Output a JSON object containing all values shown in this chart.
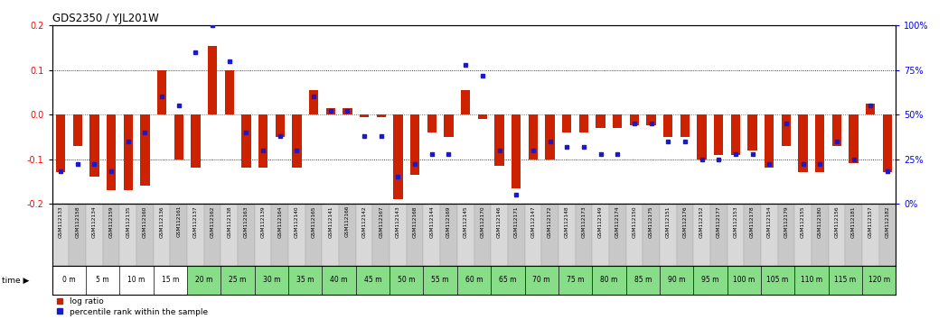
{
  "title": "GDS2350 / YJL201W",
  "gsm_labels": [
    "GSM112133",
    "GSM112158",
    "GSM112134",
    "GSM112159",
    "GSM112135",
    "GSM112160",
    "GSM112136",
    "GSM112161",
    "GSM112137",
    "GSM112162",
    "GSM112138",
    "GSM112163",
    "GSM112139",
    "GSM112164",
    "GSM112140",
    "GSM112165",
    "GSM112141",
    "GSM112166",
    "GSM112142",
    "GSM112167",
    "GSM112143",
    "GSM112168",
    "GSM112144",
    "GSM112169",
    "GSM112145",
    "GSM112170",
    "GSM112146",
    "GSM112171",
    "GSM112147",
    "GSM112172",
    "GSM112148",
    "GSM112173",
    "GSM112149",
    "GSM112174",
    "GSM112150",
    "GSM112175",
    "GSM112151",
    "GSM112176",
    "GSM112152",
    "GSM112177",
    "GSM112153",
    "GSM112178",
    "GSM112154",
    "GSM112179",
    "GSM112155",
    "GSM112180",
    "GSM112156",
    "GSM112181",
    "GSM112157",
    "GSM112182"
  ],
  "time_labels": [
    "0 m",
    "5 m",
    "10 m",
    "15 m",
    "20 m",
    "25 m",
    "30 m",
    "35 m",
    "40 m",
    "45 m",
    "50 m",
    "55 m",
    "60 m",
    "65 m",
    "70 m",
    "75 m",
    "80 m",
    "85 m",
    "90 m",
    "95 m",
    "100 m",
    "105 m",
    "110 m",
    "115 m",
    "120 m"
  ],
  "log_ratio": [
    -0.13,
    -0.07,
    -0.14,
    -0.17,
    -0.17,
    -0.16,
    0.1,
    -0.1,
    -0.12,
    0.155,
    0.1,
    -0.12,
    -0.12,
    -0.05,
    -0.12,
    0.055,
    0.015,
    0.015,
    -0.005,
    -0.005,
    -0.19,
    -0.135,
    -0.04,
    -0.05,
    0.055,
    -0.01,
    -0.115,
    -0.165,
    -0.1,
    -0.1,
    -0.04,
    -0.04,
    -0.03,
    -0.03,
    -0.025,
    -0.025,
    -0.05,
    -0.05,
    -0.1,
    -0.09,
    -0.09,
    -0.08,
    -0.12,
    -0.07,
    -0.13,
    -0.13,
    -0.07,
    -0.11,
    0.025,
    -0.13
  ],
  "percentile_pct": [
    18,
    22,
    22,
    18,
    35,
    40,
    60,
    55,
    85,
    100,
    80,
    40,
    30,
    38,
    30,
    60,
    52,
    52,
    38,
    38,
    15,
    22,
    28,
    28,
    78,
    72,
    30,
    5,
    30,
    35,
    32,
    32,
    28,
    28,
    45,
    45,
    35,
    35,
    25,
    25,
    28,
    28,
    22,
    45,
    22,
    22,
    35,
    25,
    55,
    18
  ],
  "bar_color": "#cc2200",
  "dot_color": "#1a1acc",
  "bg_color": "#ffffff",
  "ylim": [
    -0.2,
    0.2
  ],
  "y2lim": [
    0,
    100
  ],
  "yticks_left": [
    -0.2,
    -0.1,
    0.0,
    0.1,
    0.2
  ],
  "yticks_right": [
    0,
    25,
    50,
    75,
    100
  ],
  "time_bg_white": "#ffffff",
  "time_bg_green": "#88dd88",
  "gsm_col_light": "#d8d8d8",
  "gsm_col_dark": "#c8c8c8"
}
